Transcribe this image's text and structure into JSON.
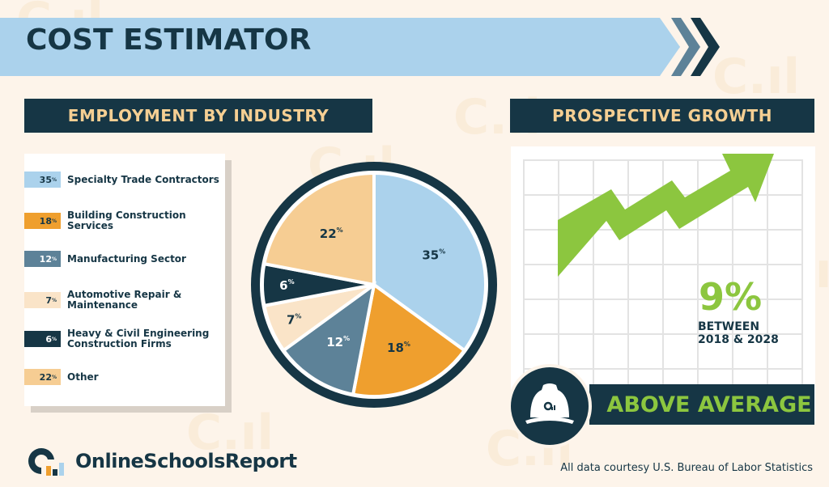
{
  "header": {
    "title": "COST ESTIMATOR"
  },
  "sections": {
    "employment": "EMPLOYMENT BY INDUSTRY",
    "growth": "PROSPECTIVE GROWTH"
  },
  "legend": [
    {
      "pct": "35",
      "label": "Specialty Trade Contractors",
      "color": "#abd2ec",
      "textColor": "#163645"
    },
    {
      "pct": "18",
      "label": "Building Construction Services",
      "color": "#ef9f2e",
      "textColor": "#163645"
    },
    {
      "pct": "12",
      "label": "Manufacturing Sector",
      "color": "#5d8298",
      "textColor": "#ffffff"
    },
    {
      "pct": "7",
      "label": "Automotive Repair & Maintenance",
      "color": "#fae4c8",
      "textColor": "#163645"
    },
    {
      "pct": "6",
      "label": "Heavy & Civil Engineering Construction Firms",
      "color": "#163645",
      "textColor": "#ffffff"
    },
    {
      "pct": "22",
      "label": "Other",
      "color": "#f6cd93",
      "textColor": "#163645"
    }
  ],
  "growth": {
    "value": "9%",
    "line1": "BETWEEN",
    "line2": "2018 & 2028",
    "rating": "ABOVE AVERAGE"
  },
  "footer": {
    "brand": "OnlineSchoolsReport",
    "credit": "All data courtesy U.S. Bureau of Labor Statistics"
  },
  "colors": {
    "navy": "#163645",
    "green": "#8cc63f",
    "gold": "#f5cf93",
    "bg": "#fdf4ea"
  },
  "chart_data": [
    {
      "type": "pie",
      "title": "EMPLOYMENT BY INDUSTRY",
      "categories": [
        "Specialty Trade Contractors",
        "Building Construction Services",
        "Manufacturing Sector",
        "Automotive Repair & Maintenance",
        "Heavy & Civil Engineering Construction Firms",
        "Other"
      ],
      "values": [
        35,
        18,
        12,
        7,
        6,
        22
      ],
      "unit": "%",
      "colors": [
        "#abd2ec",
        "#ef9f2e",
        "#5d8298",
        "#fae4c8",
        "#163645",
        "#f6cd93"
      ],
      "legend_position": "left"
    },
    {
      "type": "line",
      "title": "PROSPECTIVE GROWTH",
      "annotation": "9% BETWEEN 2018 & 2028",
      "x": [
        "2018",
        "2028"
      ],
      "values": [
        0,
        9
      ],
      "unit": "%",
      "rating": "ABOVE AVERAGE",
      "grid": true
    }
  ]
}
